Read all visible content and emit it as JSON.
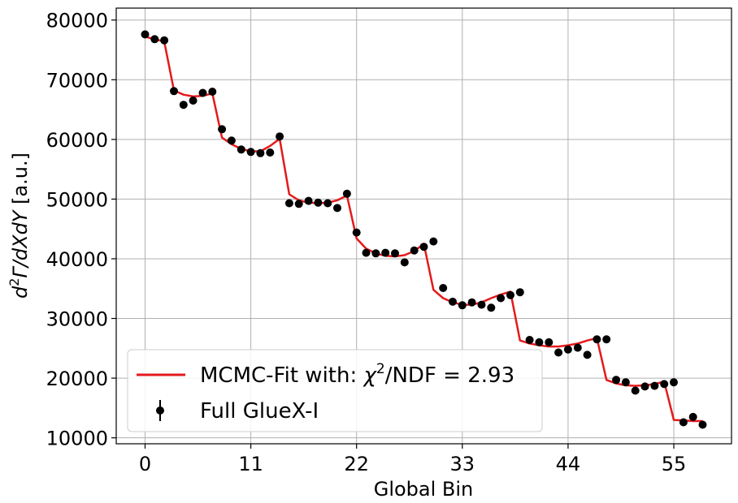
{
  "chart_data": {
    "type": "line",
    "xlabel": "Global Bin",
    "ylabel_parts": [
      "d",
      "2",
      "Γ/dXdY [a.u.]"
    ],
    "xlim": [
      -3,
      61
    ],
    "ylim": [
      9000,
      82000
    ],
    "x_ticks": [
      0,
      11,
      22,
      33,
      44,
      55
    ],
    "x_tick_labels": [
      "0",
      "11",
      "22",
      "33",
      "44",
      "55"
    ],
    "y_ticks": [
      10000,
      20000,
      30000,
      40000,
      50000,
      60000,
      70000,
      80000
    ],
    "y_tick_labels": [
      "10000",
      "20000",
      "30000",
      "40000",
      "50000",
      "60000",
      "70000",
      "80000"
    ],
    "grid": true,
    "legend_position": "lower-left",
    "series": [
      {
        "kind": "line",
        "color": "#e41a1c",
        "legend_parts": [
          "MCMC-Fit with: ",
          "χ",
          "2",
          "/NDF = 2.93"
        ],
        "x": [
          0,
          1,
          2,
          3,
          4,
          5,
          6,
          7,
          8,
          9,
          10,
          11,
          12,
          13,
          14,
          15,
          16,
          17,
          18,
          19,
          20,
          21,
          22,
          23,
          24,
          25,
          26,
          27,
          28,
          29,
          30,
          31,
          32,
          33,
          34,
          35,
          36,
          37,
          38,
          39,
          40,
          41,
          42,
          43,
          44,
          45,
          46,
          47,
          48,
          49,
          50,
          51,
          52,
          53,
          54,
          55,
          56,
          57,
          58
        ],
        "y": [
          77200,
          76800,
          76400,
          68200,
          67500,
          67200,
          67300,
          67700,
          60300,
          59200,
          58400,
          58000,
          58000,
          58900,
          60100,
          50800,
          49800,
          49400,
          49300,
          49400,
          49800,
          50600,
          43400,
          41700,
          40900,
          40500,
          40400,
          40600,
          41300,
          42500,
          34800,
          33400,
          32700,
          32300,
          32300,
          32700,
          33400,
          34000,
          34500,
          26300,
          25800,
          25500,
          25300,
          25300,
          25500,
          25800,
          26300,
          26700,
          19700,
          19100,
          18800,
          18700,
          18800,
          19000,
          19400,
          13000,
          12900,
          12800,
          12800
        ]
      },
      {
        "kind": "errorbar",
        "color": "#000000",
        "legend_parts": [
          "Full GlueX-I"
        ],
        "x": [
          0,
          1,
          2,
          3,
          4,
          5,
          6,
          7,
          8,
          9,
          10,
          11,
          12,
          13,
          14,
          15,
          16,
          17,
          18,
          19,
          20,
          21,
          22,
          23,
          24,
          25,
          26,
          27,
          28,
          29,
          30,
          31,
          32,
          33,
          34,
          35,
          36,
          37,
          38,
          39,
          40,
          41,
          42,
          43,
          44,
          45,
          46,
          47,
          48,
          49,
          50,
          51,
          52,
          53,
          54,
          55,
          56,
          57,
          58
        ],
        "y": [
          77600,
          76800,
          76600,
          68100,
          65800,
          66500,
          67800,
          68000,
          61700,
          59800,
          58300,
          57900,
          57700,
          57800,
          60500,
          49300,
          49200,
          49700,
          49400,
          49300,
          48500,
          50900,
          44400,
          41000,
          40900,
          41000,
          40900,
          39400,
          41400,
          42000,
          42900,
          35100,
          32800,
          32200,
          32700,
          32300,
          31800,
          33400,
          33900,
          34400,
          26400,
          26000,
          26000,
          24300,
          24800,
          25100,
          23900,
          26500,
          26500,
          19700,
          19300,
          17900,
          18600,
          18700,
          19000,
          19300,
          12600,
          13500,
          12200
        ]
      }
    ]
  }
}
